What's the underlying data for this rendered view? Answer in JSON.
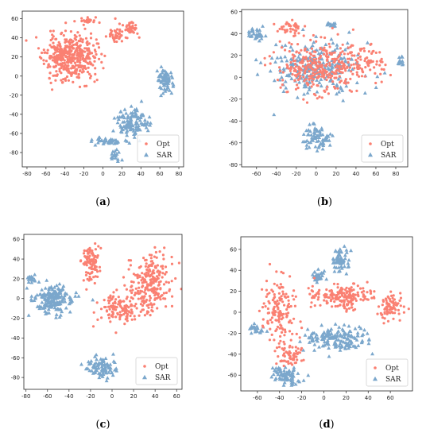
{
  "colors": {
    "opt": "#fa8072",
    "sar": "#7ba7cc",
    "axis": "#262626",
    "legend_border": "#cccccc"
  },
  "legend": {
    "opt_label": "Opt",
    "sar_label": "SAR"
  },
  "chart_data": [
    {
      "type": "scatter",
      "caption": "(a)",
      "xlim": [
        -85,
        85
      ],
      "ylim": [
        -95,
        68
      ],
      "xticks": [
        -80,
        -60,
        -40,
        -20,
        0,
        20,
        40,
        60,
        80
      ],
      "yticks": [
        -80,
        -60,
        -40,
        -20,
        0,
        20,
        40,
        60
      ],
      "grid": false,
      "legend_position": "lower-right",
      "series": [
        {
          "name": "Opt",
          "marker": "dot",
          "seed": 11,
          "clusters": [
            {
              "cx": -35,
              "cy": 20,
              "sx": 22,
              "sy": 20,
              "n": 430
            },
            {
              "cx": -15,
              "cy": 58,
              "sx": 6,
              "sy": 3,
              "n": 25
            },
            {
              "cx": 15,
              "cy": 45,
              "sx": 8,
              "sy": 8,
              "n": 40
            },
            {
              "cx": 30,
              "cy": 50,
              "sx": 6,
              "sy": 8,
              "n": 40
            }
          ]
        },
        {
          "name": "SAR",
          "marker": "triangle",
          "seed": 23,
          "clusters": [
            {
              "cx": 65,
              "cy": -5,
              "sx": 7,
              "sy": 12,
              "n": 70
            },
            {
              "cx": 30,
              "cy": -50,
              "sx": 14,
              "sy": 12,
              "n": 120
            },
            {
              "cx": 5,
              "cy": -68,
              "sx": 14,
              "sy": 3,
              "n": 40
            },
            {
              "cx": 12,
              "cy": -82,
              "sx": 4,
              "sy": 6,
              "n": 20
            }
          ]
        }
      ]
    },
    {
      "type": "scatter",
      "caption": "(b)",
      "xlim": [
        -75,
        92
      ],
      "ylim": [
        -82,
        62
      ],
      "xticks": [
        -60,
        -40,
        -20,
        0,
        20,
        40,
        60,
        80
      ],
      "yticks": [
        -80,
        -60,
        -40,
        -20,
        0,
        20,
        40,
        60
      ],
      "grid": false,
      "legend_position": "lower-right",
      "series": [
        {
          "name": "Opt",
          "marker": "dot",
          "seed": 37,
          "clusters": [
            {
              "cx": 5,
              "cy": 10,
              "sx": 35,
              "sy": 20,
              "n": 330
            },
            {
              "cx": -25,
              "cy": 45,
              "sx": 10,
              "sy": 6,
              "n": 40
            },
            {
              "cx": 50,
              "cy": 15,
              "sx": 18,
              "sy": 12,
              "n": 60
            }
          ]
        },
        {
          "name": "SAR",
          "marker": "triangle",
          "seed": 41,
          "clusters": [
            {
              "cx": 0,
              "cy": 10,
              "sx": 35,
              "sy": 22,
              "n": 250
            },
            {
              "cx": 0,
              "cy": -55,
              "sx": 12,
              "sy": 10,
              "n": 70
            },
            {
              "cx": -60,
              "cy": 40,
              "sx": 8,
              "sy": 6,
              "n": 30
            },
            {
              "cx": 15,
              "cy": 48,
              "sx": 5,
              "sy": 3,
              "n": 15
            },
            {
              "cx": 85,
              "cy": 15,
              "sx": 3,
              "sy": 3,
              "n": 12
            }
          ]
        }
      ]
    },
    {
      "type": "scatter",
      "caption": "(c)",
      "xlim": [
        -82,
        65
      ],
      "ylim": [
        -92,
        65
      ],
      "xticks": [
        -80,
        -60,
        -40,
        -20,
        0,
        20,
        40,
        60
      ],
      "yticks": [
        -80,
        -60,
        -40,
        -20,
        0,
        20,
        40,
        60
      ],
      "grid": false,
      "legend_position": "lower-right",
      "series": [
        {
          "name": "Opt",
          "marker": "dot",
          "seed": 53,
          "clusters": [
            {
              "cx": -20,
              "cy": 35,
              "sx": 7,
              "sy": 15,
              "n": 100
            },
            {
              "cx": 35,
              "cy": 15,
              "sx": 15,
              "sy": 25,
              "n": 250
            },
            {
              "cx": 5,
              "cy": -10,
              "sx": 15,
              "sy": 12,
              "n": 120
            }
          ]
        },
        {
          "name": "SAR",
          "marker": "triangle",
          "seed": 67,
          "clusters": [
            {
              "cx": -55,
              "cy": 0,
              "sx": 15,
              "sy": 12,
              "n": 180
            },
            {
              "cx": -10,
              "cy": -70,
              "sx": 12,
              "sy": 8,
              "n": 90
            },
            {
              "cx": -75,
              "cy": 20,
              "sx": 3,
              "sy": 4,
              "n": 15
            }
          ]
        }
      ]
    },
    {
      "type": "scatter",
      "caption": "(d)",
      "xlim": [
        -75,
        80
      ],
      "ylim": [
        -75,
        72
      ],
      "xticks": [
        -60,
        -40,
        -20,
        0,
        20,
        40,
        60
      ],
      "yticks": [
        -60,
        -40,
        -20,
        0,
        20,
        40,
        60
      ],
      "grid": false,
      "legend_position": "lower-right",
      "series": [
        {
          "name": "Opt",
          "marker": "dot",
          "seed": 79,
          "clusters": [
            {
              "cx": -40,
              "cy": 0,
              "sx": 12,
              "sy": 25,
              "n": 150
            },
            {
              "cx": 15,
              "cy": 15,
              "sx": 25,
              "sy": 10,
              "n": 180
            },
            {
              "cx": 60,
              "cy": 5,
              "sx": 10,
              "sy": 10,
              "n": 80
            },
            {
              "cx": -30,
              "cy": -40,
              "sx": 10,
              "sy": 10,
              "n": 60
            }
          ]
        },
        {
          "name": "SAR",
          "marker": "triangle",
          "seed": 83,
          "clusters": [
            {
              "cx": 10,
              "cy": -25,
              "sx": 25,
              "sy": 10,
              "n": 160
            },
            {
              "cx": -35,
              "cy": -60,
              "sx": 12,
              "sy": 8,
              "n": 70
            },
            {
              "cx": 15,
              "cy": 50,
              "sx": 6,
              "sy": 10,
              "n": 60
            },
            {
              "cx": -60,
              "cy": -15,
              "sx": 6,
              "sy": 4,
              "n": 20
            },
            {
              "cx": -5,
              "cy": 35,
              "sx": 5,
              "sy": 6,
              "n": 30
            }
          ]
        }
      ]
    }
  ]
}
